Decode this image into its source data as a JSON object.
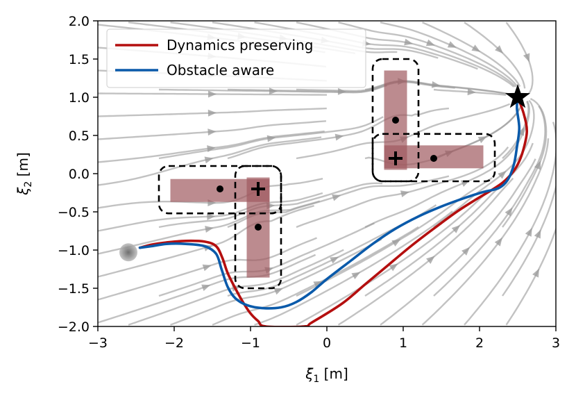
{
  "chart_data": {
    "type": "line",
    "xlabel_symbol": "ξ",
    "xlabel_sub": "1",
    "xlabel_unit": " [m]",
    "ylabel_symbol": "ξ",
    "ylabel_sub": "2",
    "ylabel_unit": " [m]",
    "xlim": [
      -3,
      3
    ],
    "ylim": [
      -2,
      2
    ],
    "xticks": [
      -3,
      -2,
      -1,
      0,
      1,
      2,
      3
    ],
    "yticks": [
      -2,
      -1.5,
      -1,
      -0.5,
      0,
      0.5,
      1,
      1.5,
      2
    ],
    "xtick_labels": [
      "−3",
      "−2",
      "−1",
      "0",
      "1",
      "2",
      "3"
    ],
    "ytick_labels": [
      "−2.0",
      "−1.5",
      "−1.0",
      "−0.5",
      "0.0",
      "0.5",
      "1.0",
      "1.5",
      "2.0"
    ],
    "legend": {
      "position": "top-left"
    },
    "series": [
      {
        "name": "Dynamics preserving",
        "color": "#b40f0f",
        "points": [
          [
            -2.45,
            -0.97
          ],
          [
            -2.3,
            -0.93
          ],
          [
            -2.1,
            -0.9
          ],
          [
            -1.85,
            -0.88
          ],
          [
            -1.6,
            -0.89
          ],
          [
            -1.45,
            -0.95
          ],
          [
            -1.37,
            -1.1
          ],
          [
            -1.3,
            -1.3
          ],
          [
            -1.2,
            -1.5
          ],
          [
            -1.1,
            -1.68
          ],
          [
            -1.0,
            -1.83
          ],
          [
            -0.9,
            -1.93
          ],
          [
            -0.8,
            -2.0
          ],
          [
            -0.3,
            -2.0
          ],
          [
            -0.2,
            -1.95
          ],
          [
            0.2,
            -1.7
          ],
          [
            0.5,
            -1.45
          ],
          [
            0.8,
            -1.2
          ],
          [
            1.1,
            -0.95
          ],
          [
            1.4,
            -0.72
          ],
          [
            1.7,
            -0.5
          ],
          [
            1.95,
            -0.34
          ],
          [
            2.15,
            -0.22
          ],
          [
            2.3,
            -0.12
          ],
          [
            2.42,
            0.0
          ],
          [
            2.5,
            0.12
          ],
          [
            2.57,
            0.3
          ],
          [
            2.62,
            0.55
          ],
          [
            2.58,
            0.78
          ],
          [
            2.5,
            1.0
          ]
        ]
      },
      {
        "name": "Obstacle aware",
        "color": "#0a5aaa",
        "points": [
          [
            -2.45,
            -0.97
          ],
          [
            -2.3,
            -0.95
          ],
          [
            -2.1,
            -0.92
          ],
          [
            -1.85,
            -0.92
          ],
          [
            -1.6,
            -0.95
          ],
          [
            -1.45,
            -1.05
          ],
          [
            -1.38,
            -1.25
          ],
          [
            -1.3,
            -1.48
          ],
          [
            -1.2,
            -1.63
          ],
          [
            -1.05,
            -1.72
          ],
          [
            -0.85,
            -1.76
          ],
          [
            -0.6,
            -1.75
          ],
          [
            -0.4,
            -1.68
          ],
          [
            -0.2,
            -1.55
          ],
          [
            0.0,
            -1.38
          ],
          [
            0.3,
            -1.15
          ],
          [
            0.6,
            -0.92
          ],
          [
            0.9,
            -0.72
          ],
          [
            1.2,
            -0.56
          ],
          [
            1.5,
            -0.43
          ],
          [
            1.8,
            -0.32
          ],
          [
            2.05,
            -0.24
          ],
          [
            2.25,
            -0.19
          ],
          [
            2.37,
            -0.08
          ],
          [
            2.45,
            0.12
          ],
          [
            2.49,
            0.35
          ],
          [
            2.52,
            0.6
          ],
          [
            2.49,
            0.85
          ],
          [
            2.5,
            1.0
          ]
        ]
      }
    ],
    "obstacles": [
      {
        "name": "left-horizontal",
        "x": [
          -2.05,
          -0.75
        ],
        "y": [
          -0.37,
          -0.07
        ],
        "center": [
          -1.4,
          -0.2
        ],
        "dashed_box": [
          -2.2,
          0.1,
          -0.6,
          -0.52
        ]
      },
      {
        "name": "left-vertical",
        "x": [
          -1.05,
          -0.75
        ],
        "y": [
          -1.36,
          -0.05
        ],
        "center": [
          -0.9,
          -0.7
        ],
        "dashed_box": [
          -1.2,
          0.1,
          -0.6,
          -1.5
        ]
      },
      {
        "name": "right-vertical",
        "x": [
          0.75,
          1.05
        ],
        "y": [
          0.05,
          1.35
        ],
        "center": [
          0.9,
          0.7
        ],
        "dashed_box": [
          0.6,
          1.5,
          1.2,
          -0.1
        ]
      },
      {
        "name": "right-horizontal",
        "x": [
          0.75,
          2.05
        ],
        "y": [
          0.07,
          0.37
        ],
        "center": [
          1.4,
          0.2
        ],
        "dashed_box": [
          0.6,
          0.52,
          2.2,
          -0.1
        ]
      }
    ],
    "cross_markers": [
      [
        -0.9,
        -0.2
      ],
      [
        0.9,
        0.2
      ]
    ],
    "attractor": [
      2.5,
      1.0
    ],
    "start": [
      -2.6,
      -1.03
    ],
    "obstacle_color": "#a05a60",
    "stream_color": "#9a9a9a"
  }
}
